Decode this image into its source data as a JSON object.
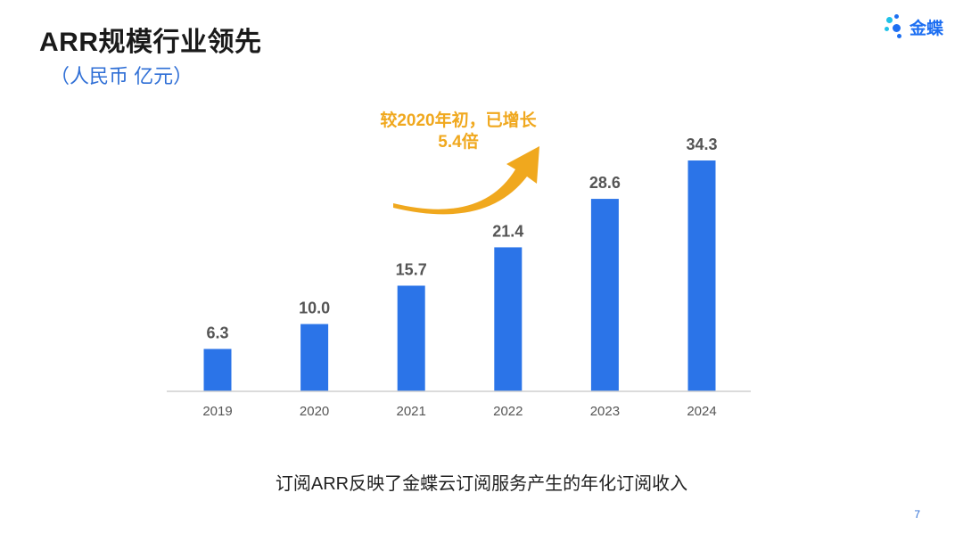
{
  "slide": {
    "title": "ARR规模行业领先",
    "unit": "（人民币 亿元）",
    "caption": "订阅ARR反映了金蝶云订阅服务产生的年化订阅收入",
    "page_number": "7"
  },
  "logo": {
    "text": "金蝶",
    "icon": "kingdee-dots-logo-icon"
  },
  "annotation": {
    "line1": "较2020年初，已增长",
    "line2": "5.4倍",
    "color": "#F0A81E",
    "icon": "curved-arrow-up-icon"
  },
  "colors": {
    "bar": "#2B74E8",
    "accent": "#2F6FD6",
    "arrow": "#F0A81E"
  },
  "chart_data": {
    "type": "bar",
    "categories": [
      "2019",
      "2020",
      "2021",
      "2022",
      "2023",
      "2024"
    ],
    "values": [
      6.3,
      10.0,
      15.7,
      21.4,
      28.6,
      34.3
    ],
    "value_labels": [
      "6.3",
      "10.0",
      "15.7",
      "21.4",
      "28.6",
      "34.3"
    ],
    "title": "",
    "xlabel": "",
    "ylabel": "",
    "ylim": [
      0,
      35
    ],
    "grid": false,
    "legend": "none"
  }
}
